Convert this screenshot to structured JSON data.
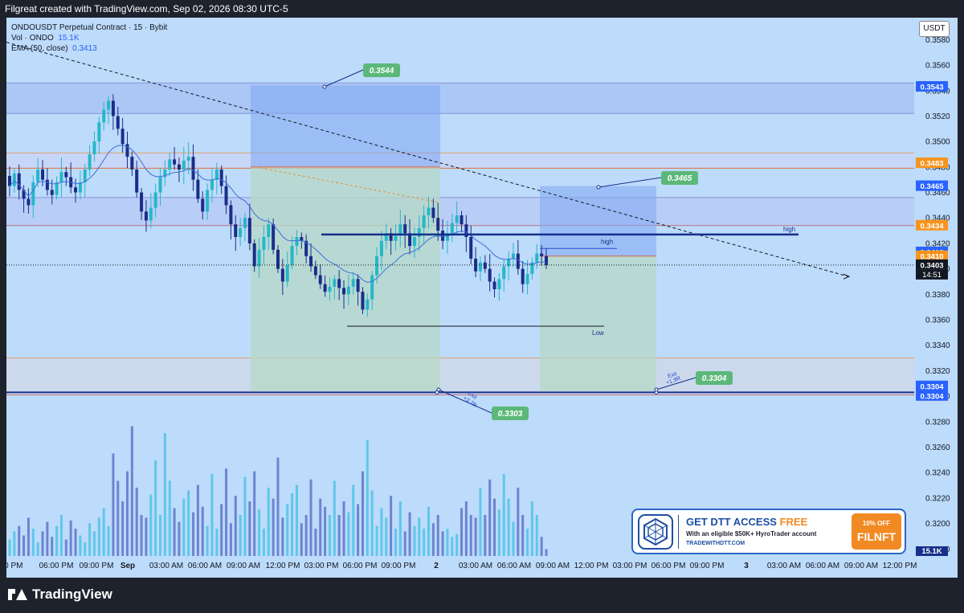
{
  "header": {
    "title": "Filgreat created with TradingView.com, Sep 02, 2026 08:30 UTC-5"
  },
  "legend": {
    "symbol": "ONDOUSDT Perpetual Contract · 15 · Bybit",
    "vol_label": "Vol · ONDO",
    "vol_value": "15.1K",
    "ema_label": "EMA (50, close)",
    "ema_value": "0.3413"
  },
  "currency": "USDT",
  "colors": {
    "background": "#bddbfa",
    "up": "#26b7c9",
    "down": "#1a2d8a",
    "ema": "#3d6fd6",
    "brand": "#1d4ea3"
  },
  "chart_data": {
    "type": "candlestick",
    "symbol": "ONDOUSDT",
    "interval": "15",
    "ylim": [
      0.3172,
      0.3596
    ],
    "y_ticks": [
      0.318,
      0.32,
      0.322,
      0.324,
      0.326,
      0.328,
      0.33,
      0.332,
      0.334,
      0.336,
      0.338,
      0.34,
      0.342,
      0.344,
      0.346,
      0.348,
      0.35,
      0.352,
      0.354,
      0.356,
      0.358
    ],
    "x_ticks": [
      "00 PM",
      "06:00 PM",
      "09:00 PM",
      "Sep",
      "03:00 AM",
      "06:00 AM",
      "09:00 AM",
      "12:00 PM",
      "03:00 PM",
      "06:00 PM",
      "09:00 PM",
      "2",
      "03:00 AM",
      "06:00 AM",
      "09:00 AM",
      "12:00 PM",
      "03:00 PM",
      "06:00 PM",
      "09:00 PM",
      "3",
      "03:00 AM",
      "06:00 AM",
      "09:00 AM",
      "12:00 PM"
    ],
    "price_path": [
      0.3465,
      0.3475,
      0.3462,
      0.3455,
      0.345,
      0.3468,
      0.3478,
      0.347,
      0.3462,
      0.3458,
      0.3468,
      0.3476,
      0.3472,
      0.3464,
      0.346,
      0.3468,
      0.3478,
      0.349,
      0.35,
      0.3515,
      0.3525,
      0.3532,
      0.352,
      0.351,
      0.3498,
      0.3488,
      0.3478,
      0.346,
      0.3445,
      0.3438,
      0.3448,
      0.346,
      0.3472,
      0.3478,
      0.3486,
      0.3482,
      0.3478,
      0.3485,
      0.3488,
      0.347,
      0.3455,
      0.3445,
      0.3462,
      0.347,
      0.3478,
      0.3465,
      0.345,
      0.3435,
      0.3425,
      0.3432,
      0.344,
      0.342,
      0.3402,
      0.3415,
      0.3425,
      0.3435,
      0.3415,
      0.34,
      0.339,
      0.3403,
      0.3418,
      0.3425,
      0.3422,
      0.341,
      0.3402,
      0.3395,
      0.3388,
      0.3382,
      0.3386,
      0.3392,
      0.3385,
      0.338,
      0.3386,
      0.3392,
      0.3382,
      0.3368,
      0.3376,
      0.3395,
      0.341,
      0.3422,
      0.3428,
      0.3422,
      0.3426,
      0.3435,
      0.3428,
      0.3418,
      0.3425,
      0.3432,
      0.3442,
      0.3448,
      0.344,
      0.343,
      0.3422,
      0.3428,
      0.3436,
      0.3442,
      0.3435,
      0.3425,
      0.3408,
      0.3398,
      0.3405,
      0.34,
      0.339,
      0.3384,
      0.3392,
      0.3402,
      0.3408,
      0.3412,
      0.34,
      0.3388,
      0.3396,
      0.3405,
      0.3412,
      0.341,
      0.3403
    ],
    "volume": [
      0.12,
      0.18,
      0.22,
      0.15,
      0.28,
      0.2,
      0.1,
      0.18,
      0.25,
      0.14,
      0.22,
      0.3,
      0.12,
      0.26,
      0.2,
      0.15,
      0.1,
      0.24,
      0.18,
      0.28,
      0.35,
      0.22,
      0.75,
      0.55,
      0.4,
      0.62,
      0.95,
      0.5,
      0.3,
      0.28,
      0.45,
      0.7,
      0.3,
      0.9,
      0.55,
      0.35,
      0.25,
      0.42,
      0.48,
      0.32,
      0.52,
      0.36,
      0.22,
      0.6,
      0.2,
      0.38,
      0.64,
      0.24,
      0.44,
      0.3,
      0.58,
      0.4,
      0.62,
      0.34,
      0.2,
      0.5,
      0.42,
      0.72,
      0.28,
      0.38,
      0.46,
      0.52,
      0.24,
      0.3,
      0.56,
      0.2,
      0.42,
      0.36,
      0.3,
      0.55,
      0.3,
      0.4,
      0.32,
      0.52,
      0.38,
      0.62,
      0.85,
      0.48,
      0.22,
      0.35,
      0.28,
      0.44,
      0.2,
      0.4,
      0.18,
      0.32,
      0.22,
      0.28,
      0.2,
      0.36,
      0.24,
      0.3,
      0.18,
      0.2,
      0.14,
      0.16,
      0.35,
      0.4,
      0.3,
      0.28,
      0.5,
      0.3,
      0.56,
      0.42,
      0.34,
      0.6,
      0.42,
      0.25,
      0.5,
      0.3,
      0.2,
      0.4,
      0.3,
      0.14,
      0.05
    ]
  },
  "annotations": {
    "top_target": "0.3544",
    "right_target": "0.3465",
    "bottom_target_left": "0.3303",
    "bottom_target_right": "0.3304",
    "high_label_1": "high",
    "high_label_2": "high",
    "low_label": "Low",
    "exit_1": "Exit",
    "exit_1_r": "+3.7R",
    "exit_2": "Exit",
    "exit_2_r": "+1.9R"
  },
  "price_labels": [
    {
      "value": "0.3543",
      "color": "#2962ff"
    },
    {
      "value": "0.3483",
      "color": "#f7941d"
    },
    {
      "value": "0.3465",
      "color": "#2962ff"
    },
    {
      "value": "0.3434",
      "color": "#f7941d"
    },
    {
      "value": "0.3413",
      "color": "#2962ff"
    },
    {
      "value": "0.3410",
      "color": "#f7941d"
    },
    {
      "value": "0.3403",
      "color": "#131722"
    },
    {
      "value": "0.3304",
      "color": "#2962ff"
    },
    {
      "value": "0.3304",
      "color": "#2962ff"
    }
  ],
  "countdown": "14:51",
  "volume_label": "15.1K",
  "ad": {
    "headline": "GET DTT ACCESS",
    "headline_accent": "FREE",
    "subline": "With an eligible $50K+ HyroTrader account",
    "url": "TRADEWITHDTT.COM",
    "coupon_top": "10% OFF",
    "coupon_code": "FILNFT"
  },
  "footer": {
    "brand": "TradingView"
  }
}
